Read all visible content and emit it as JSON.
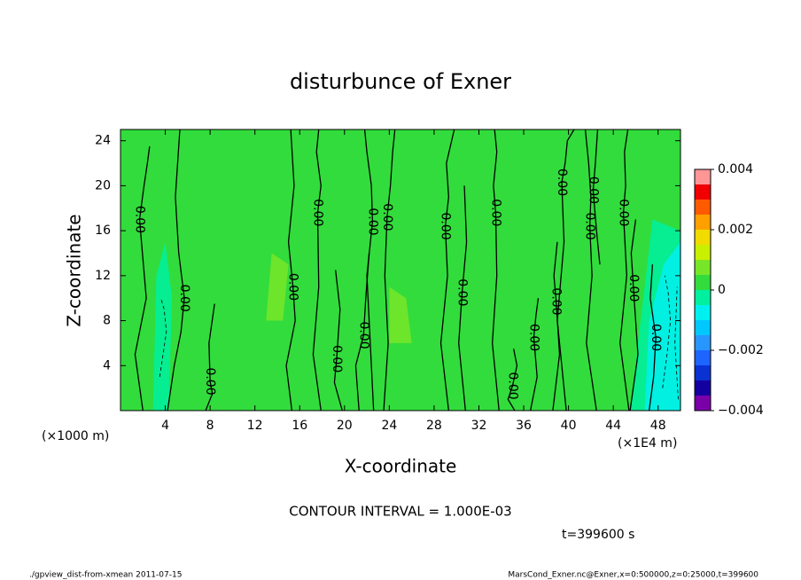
{
  "chart_data": {
    "type": "contour",
    "title": "disturbunce of Exner",
    "x_label": "X-coordinate",
    "y_label": "Z-coordinate",
    "x_units": "(×1E4 m)",
    "y_units": "(×1000 m)",
    "xlim": [
      0,
      50
    ],
    "ylim": [
      0,
      25
    ],
    "xticks": [
      4,
      8,
      12,
      16,
      20,
      24,
      28,
      32,
      36,
      40,
      44,
      48
    ],
    "yticks": [
      4,
      8,
      12,
      16,
      20,
      24
    ],
    "colorbar": {
      "lim": [
        -0.004,
        0.004
      ],
      "ticks": [
        {
          "value": 0.004,
          "label": "0.004"
        },
        {
          "value": 0.002,
          "label": "0.002"
        },
        0,
        {
          "value": -0.002,
          "label": "−0.002"
        },
        {
          "value": -0.004,
          "label": "−0.004"
        }
      ],
      "colors": [
        "#7a00a8",
        "#1400a0",
        "#0a32d2",
        "#1e64ff",
        "#2896ff",
        "#00c8ff",
        "#00f0f0",
        "#00f0a0",
        "#32dc3c",
        "#78e628",
        "#c8f000",
        "#f0dc00",
        "#ffa000",
        "#ff5a00",
        "#f00000",
        "#ff9696"
      ]
    },
    "fill_regions": [
      {
        "level": -0.0003,
        "x": [
          2.9,
          4.3,
          4.6,
          4.0,
          3.2
        ],
        "y": [
          0,
          0,
          10,
          15,
          12
        ]
      },
      {
        "level": -0.0003,
        "x": [
          45.5,
          50,
          50,
          47.5
        ],
        "y": [
          0,
          0,
          16,
          17
        ]
      },
      {
        "level": -0.0008,
        "x": [
          46.8,
          50,
          50,
          48.5,
          47.2
        ],
        "y": [
          0,
          0,
          15,
          13,
          8
        ]
      },
      {
        "level": 0.0007,
        "x": [
          13,
          14.5,
          15,
          13.5
        ],
        "y": [
          8,
          8,
          13,
          14
        ]
      },
      {
        "level": 0.0007,
        "x": [
          24,
          26,
          25.5,
          24
        ],
        "y": [
          6,
          6,
          10,
          11
        ]
      }
    ],
    "contours": [
      {
        "level": 0,
        "label": "0.00",
        "x": [
          2.0,
          1.3,
          2.3,
          1.7,
          2.1,
          2.4,
          2.6
        ],
        "y": [
          0,
          5,
          10,
          17,
          20,
          22,
          23.5
        ]
      },
      {
        "level": 0,
        "label": "0.00",
        "x": [
          4.2,
          4.8,
          5.4,
          5.7,
          5.2,
          4.9,
          5.3
        ],
        "y": [
          0,
          4,
          7,
          10,
          14,
          19,
          25
        ]
      },
      {
        "level": 0,
        "label": "0.00",
        "x": [
          7.6,
          8.2,
          8.0,
          7.9,
          8.4
        ],
        "y": [
          0,
          1.5,
          2.6,
          6,
          9.5
        ]
      },
      {
        "level": 0,
        "label": "0.00",
        "x": [
          15.3,
          14.8,
          15.6,
          15.4,
          15.0,
          15.5,
          15.2
        ],
        "y": [
          0,
          4,
          8,
          11,
          15,
          20,
          25
        ]
      },
      {
        "level": 0,
        "label": "0.00",
        "x": [
          17.9,
          17.2,
          17.7,
          17.6,
          17.9,
          17.5,
          17.7
        ],
        "y": [
          0,
          5,
          11,
          17.6,
          20,
          23,
          25
        ]
      },
      {
        "level": 0,
        "label": "0.00",
        "x": [
          19.8,
          19.1,
          19.3,
          19.6,
          19.2
        ],
        "y": [
          0,
          2.5,
          4.6,
          9,
          12.5
        ]
      },
      {
        "level": 0,
        "label": "0.00",
        "x": [
          21.3,
          21.0,
          21.7,
          21.9,
          22.2
        ],
        "y": [
          0,
          4,
          6.7,
          10,
          14
        ]
      },
      {
        "level": 0,
        "label": "0.00",
        "x": [
          22.6,
          22.3,
          22.0,
          22.5,
          22.4,
          22.0,
          21.8
        ],
        "y": [
          0,
          6,
          12,
          16.8,
          20,
          23,
          25
        ]
      },
      {
        "level": 0,
        "label": "0.00",
        "x": [
          23.5,
          23.9,
          23.6,
          23.8,
          24.1,
          24.3,
          24.5
        ],
        "y": [
          0,
          6,
          12,
          17.2,
          20,
          23,
          25
        ]
      },
      {
        "level": 0,
        "label": "0.00",
        "x": [
          29.3,
          28.6,
          29.2,
          29.0,
          29.3,
          29.1,
          29.8
        ],
        "y": [
          0,
          6,
          12,
          16.4,
          19,
          22,
          25
        ]
      },
      {
        "level": 0,
        "label": "0.00",
        "x": [
          30.8,
          30.2,
          30.5,
          30.9,
          30.7
        ],
        "y": [
          0,
          6,
          10.5,
          15,
          20
        ]
      },
      {
        "level": 0,
        "label": "0.00",
        "x": [
          33.8,
          33.2,
          33.6,
          33.5,
          33.3,
          33.6,
          33.4
        ],
        "y": [
          0,
          6,
          12,
          17.6,
          20,
          23,
          25
        ]
      },
      {
        "level": 0,
        "label": "0.00",
        "x": [
          35.2,
          34.6,
          35.0,
          35.4,
          35.1
        ],
        "y": [
          0,
          1,
          2.2,
          4,
          5.5
        ]
      },
      {
        "level": 0,
        "label": "0.00",
        "x": [
          36.6,
          37.2,
          36.9,
          37.1,
          37.3
        ],
        "y": [
          0,
          3,
          6.5,
          8.5,
          10
        ]
      },
      {
        "level": 0,
        "label": "0.00",
        "x": [
          38.6,
          39.2,
          38.9,
          38.7,
          39.0
        ],
        "y": [
          0,
          5,
          9.7,
          12,
          15
        ]
      },
      {
        "level": 0,
        "label": "0.00",
        "x": [
          39.8,
          39.0,
          39.6,
          39.4,
          39.7,
          39.9,
          40.5
        ],
        "y": [
          0,
          8,
          15,
          20.3,
          22,
          24,
          25
        ]
      },
      {
        "level": 0,
        "label": "0.00",
        "x": [
          42.5,
          41.6,
          42.1,
          41.9,
          42.0,
          41.8,
          41.5
        ],
        "y": [
          0,
          6,
          12,
          16.4,
          19,
          22,
          25
        ]
      },
      {
        "level": 0,
        "label": "0.00",
        "x": [
          42.8,
          42.5,
          42.2,
          42.4,
          42.6
        ],
        "y": [
          13,
          16,
          19.6,
          22,
          25
        ]
      },
      {
        "level": 0,
        "label": "0.00",
        "x": [
          45.4,
          44.6,
          45.2,
          44.9,
          45.1,
          45.0,
          45.3
        ],
        "y": [
          0,
          6,
          12,
          17.6,
          20,
          23,
          25
        ]
      },
      {
        "level": 0,
        "label": "0.00",
        "x": [
          45.5,
          46.2,
          45.8,
          45.6,
          46.0
        ],
        "y": [
          0,
          5,
          10.9,
          14,
          17
        ]
      },
      {
        "level": 0,
        "label": "0.00",
        "x": [
          47.2,
          47.6,
          47.8,
          47.3,
          47.5
        ],
        "y": [
          0,
          3,
          6.5,
          10,
          13
        ]
      },
      {
        "level": -0.001,
        "x": [
          3.5,
          3.8,
          4.1,
          3.9,
          3.6
        ],
        "y": [
          3,
          5,
          7,
          9,
          10
        ]
      },
      {
        "level": -0.001,
        "x": [
          48.4,
          48.8,
          49.1,
          48.9,
          48.6
        ],
        "y": [
          2,
          5,
          8,
          10.5,
          12
        ]
      },
      {
        "level": -0.001,
        "x": [
          49.8,
          49.5,
          49.7
        ],
        "y": [
          1,
          6,
          11
        ]
      }
    ],
    "contour_interval_text": "CONTOUR INTERVAL = 1.000E-03",
    "time_text": "t=399600 s",
    "footer_left": "./gpview_dist-from-xmean  2011-07-15",
    "footer_right": "MarsCond_Exner.nc@Exner,x=0:500000,z=0:25000,t=399600"
  }
}
